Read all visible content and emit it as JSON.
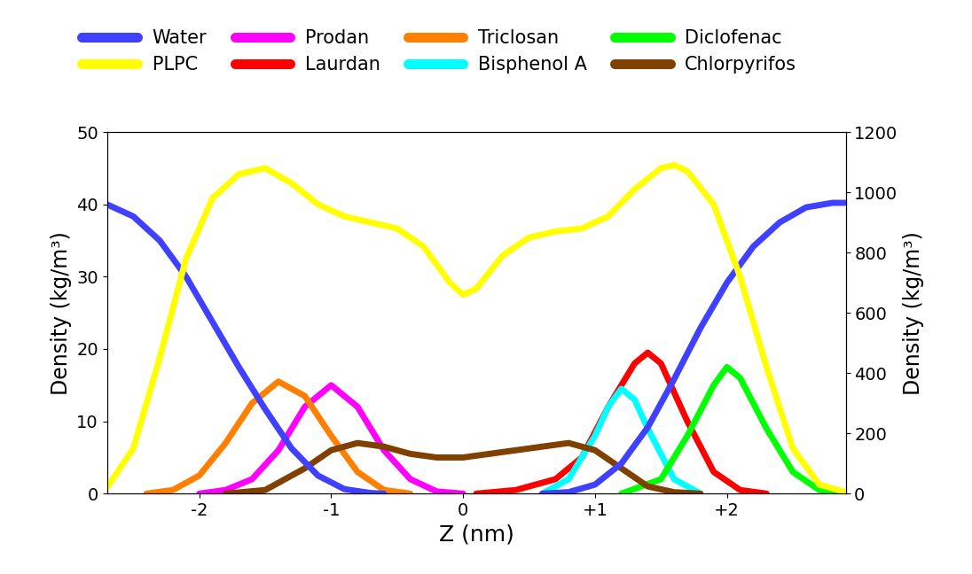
{
  "chart_data": {
    "type": "line",
    "x_label": "Z (nm)",
    "y_label": "Density (kg/m³)",
    "y2_label": "Density (kg/m³)",
    "xlim": [
      -2.7,
      2.9
    ],
    "xticks": [
      -2,
      -1,
      0,
      {
        "value": 1,
        "label": "+1"
      },
      {
        "value": 2,
        "label": "+2"
      }
    ],
    "ylim": [
      0,
      50
    ],
    "yticks": [
      0,
      10,
      20,
      30,
      40,
      50
    ],
    "y2lim": [
      0,
      1200
    ],
    "y2ticks": [
      0,
      200,
      400,
      600,
      800,
      1000,
      1200
    ],
    "legend": "upper center",
    "series": [
      {
        "name": "Water",
        "color": "#4040ff",
        "axis": "y2",
        "x": [
          -2.7,
          -2.5,
          -2.3,
          -2.1,
          -1.9,
          -1.7,
          -1.5,
          -1.3,
          -1.1,
          -0.9,
          -0.7,
          -0.6,
          0.0,
          0.6,
          0.8,
          1.0,
          1.2,
          1.4,
          1.6,
          1.8,
          2.0,
          2.2,
          2.4,
          2.6,
          2.8,
          2.9
        ],
        "values": [
          960,
          920,
          840,
          720,
          570,
          420,
          280,
          150,
          60,
          15,
          2,
          0,
          null,
          0,
          5,
          30,
          100,
          220,
          380,
          550,
          700,
          820,
          900,
          950,
          965,
          965
        ]
      },
      {
        "name": "PLPC",
        "color": "#ffff00",
        "axis": "y2",
        "x": [
          -2.7,
          -2.5,
          -2.3,
          -2.1,
          -1.9,
          -1.7,
          -1.5,
          -1.3,
          -1.1,
          -0.9,
          -0.7,
          -0.5,
          -0.3,
          -0.1,
          0.0,
          0.1,
          0.3,
          0.5,
          0.7,
          0.9,
          1.1,
          1.3,
          1.5,
          1.6,
          1.7,
          1.9,
          2.1,
          2.3,
          2.5,
          2.7,
          2.9
        ],
        "values": [
          20,
          150,
          450,
          780,
          980,
          1060,
          1080,
          1030,
          960,
          920,
          900,
          880,
          820,
          700,
          660,
          680,
          790,
          850,
          870,
          880,
          920,
          1010,
          1080,
          1090,
          1070,
          960,
          720,
          420,
          150,
          30,
          5
        ]
      },
      {
        "name": "Prodan",
        "color": "#ff00ff",
        "x": [
          -2.0,
          -1.8,
          -1.6,
          -1.4,
          -1.2,
          -1.0,
          -0.8,
          -0.6,
          -0.4,
          -0.2,
          0.0
        ],
        "values": [
          0,
          0.5,
          2,
          6,
          12,
          15,
          12,
          6,
          2,
          0.3,
          0
        ]
      },
      {
        "name": "Laurdan",
        "color": "#ff0000",
        "x": [
          0.1,
          0.4,
          0.7,
          0.9,
          1.1,
          1.3,
          1.4,
          1.5,
          1.7,
          1.9,
          2.1,
          2.3
        ],
        "values": [
          0,
          0.5,
          2,
          5,
          12,
          18,
          19.5,
          18,
          10,
          3,
          0.5,
          0
        ]
      },
      {
        "name": "Triclosan",
        "color": "#ff8000",
        "x": [
          -2.4,
          -2.2,
          -2.0,
          -1.8,
          -1.6,
          -1.4,
          -1.2,
          -1.0,
          -0.8,
          -0.6,
          -0.4
        ],
        "values": [
          0,
          0.5,
          2.5,
          7,
          12.5,
          15.5,
          13.5,
          8,
          3,
          0.5,
          0
        ]
      },
      {
        "name": "Bisphenol A",
        "color": "#00ffff",
        "x": [
          0.6,
          0.8,
          1.0,
          1.1,
          1.2,
          1.3,
          1.4,
          1.6,
          1.8
        ],
        "values": [
          0,
          2,
          8,
          12,
          14.5,
          13,
          9,
          2,
          0
        ]
      },
      {
        "name": "Diclofenac",
        "color": "#00ff00",
        "x": [
          1.2,
          1.5,
          1.7,
          1.9,
          2.0,
          2.1,
          2.3,
          2.5,
          2.7,
          2.9
        ],
        "values": [
          0,
          2,
          8,
          15,
          17.5,
          16,
          9,
          3,
          0.5,
          0
        ]
      },
      {
        "name": "Chlorpyrifos",
        "color": "#804000",
        "x": [
          -1.8,
          -1.5,
          -1.2,
          -1.0,
          -0.8,
          -0.6,
          -0.4,
          -0.2,
          0.0,
          0.2,
          0.4,
          0.6,
          0.8,
          1.0,
          1.2,
          1.4,
          1.6,
          1.8
        ],
        "values": [
          0,
          0.5,
          3.5,
          6,
          7,
          6.5,
          5.5,
          5,
          5,
          5.5,
          6,
          6.5,
          7,
          6,
          3.5,
          1,
          0.2,
          0
        ]
      }
    ]
  }
}
